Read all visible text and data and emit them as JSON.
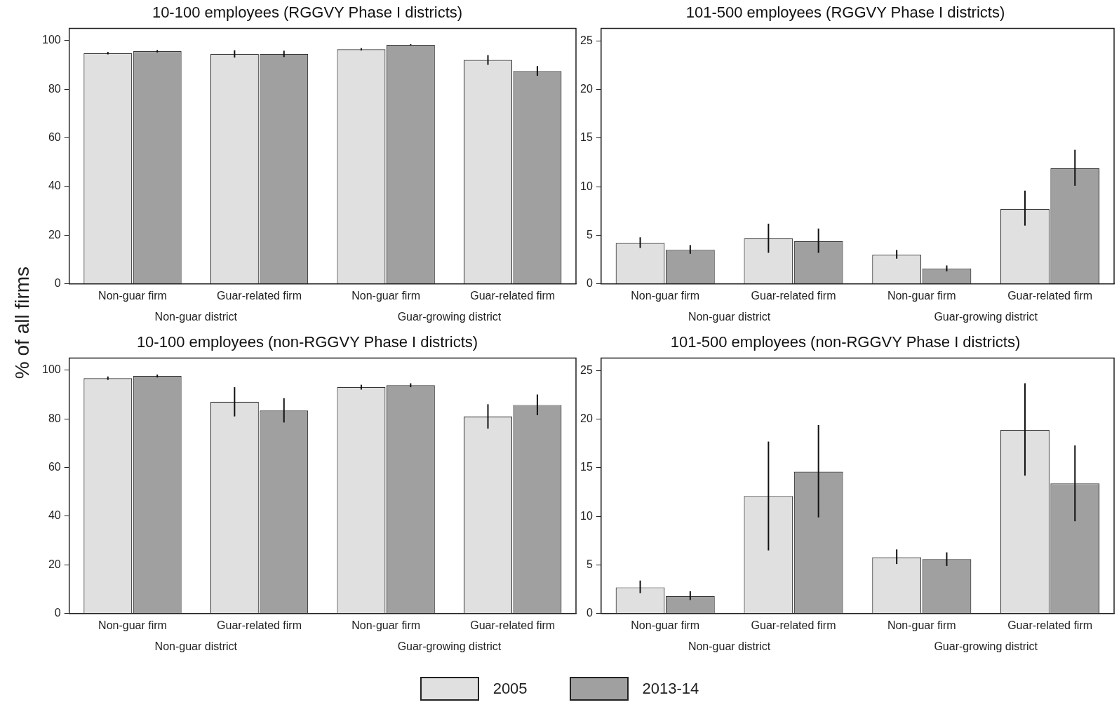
{
  "chart_data": [
    {
      "type": "bar",
      "title": "10-100 employees (RGGVY Phase I districts)",
      "ylabel": "% of all firms",
      "categories": [
        "Non-guar firm",
        "Guar-related firm",
        "Non-guar firm",
        "Guar-related firm"
      ],
      "annotations": [
        "Non-guar district",
        "Guar-growing district"
      ],
      "ylim": [
        0,
        105
      ],
      "yticks": [
        0,
        20,
        40,
        60,
        80,
        100
      ],
      "grid": false,
      "legend": "bottom",
      "series": [
        {
          "name": "2005",
          "color": "#e0e0e0",
          "values": [
            94.8,
            94.5,
            96.4,
            92
          ],
          "errors": [
            [
              94.3,
              95.3
            ],
            [
              93,
              96
            ],
            [
              95.9,
              96.9
            ],
            [
              90,
              94
            ]
          ]
        },
        {
          "name": "2013-14",
          "color": "#a0a0a0",
          "values": [
            95.6,
            94.5,
            98.2,
            87.5
          ],
          "errors": [
            [
              95.1,
              96.1
            ],
            [
              93.2,
              95.8
            ],
            [
              97.9,
              98.5
            ],
            [
              85.5,
              89.5
            ]
          ]
        }
      ]
    },
    {
      "type": "bar",
      "title": "101-500 employees (RGGVY Phase I districts)",
      "categories": [
        "Non-guar firm",
        "Guar-related firm",
        "Non-guar firm",
        "Guar-related firm"
      ],
      "annotations": [
        "Non-guar district",
        "Guar-growing district"
      ],
      "ylim": [
        0,
        26.3
      ],
      "yticks": [
        0,
        5,
        10,
        15,
        20,
        25
      ],
      "grid": false,
      "series": [
        {
          "color": "#e0e0e0",
          "values": [
            4.2,
            4.7,
            3.0,
            7.7
          ],
          "errors": [
            [
              3.7,
              4.8
            ],
            [
              3.2,
              6.2
            ],
            [
              2.6,
              3.5
            ],
            [
              6.0,
              9.6
            ]
          ]
        },
        {
          "color": "#a0a0a0",
          "values": [
            3.5,
            4.4,
            1.6,
            11.9
          ],
          "errors": [
            [
              3.1,
              4.0
            ],
            [
              3.2,
              5.7
            ],
            [
              1.3,
              1.9
            ],
            [
              10.1,
              13.8
            ]
          ]
        }
      ]
    },
    {
      "type": "bar",
      "title": "10-100 employees (non-RGGVY Phase I districts)",
      "categories": [
        "Non-guar firm",
        "Guar-related firm",
        "Non-guar firm",
        "Guar-related firm"
      ],
      "annotations": [
        "Non-guar district",
        "Guar-growing district"
      ],
      "ylim": [
        0,
        105
      ],
      "yticks": [
        0,
        20,
        40,
        60,
        80,
        100
      ],
      "grid": false,
      "series": [
        {
          "color": "#e0e0e0",
          "values": [
            96.7,
            87,
            93,
            81
          ],
          "errors": [
            [
              96,
              97.4
            ],
            [
              81,
              93
            ],
            [
              92,
              94
            ],
            [
              76,
              86
            ]
          ]
        },
        {
          "color": "#a0a0a0",
          "values": [
            97.6,
            83.4,
            93.8,
            85.7
          ],
          "errors": [
            [
              97,
              98.2
            ],
            [
              78.5,
              88.5
            ],
            [
              93,
              94.6
            ],
            [
              81.5,
              90
            ]
          ]
        }
      ]
    },
    {
      "type": "bar",
      "title": "101-500 employees (non-RGGVY Phase I districts)",
      "categories": [
        "Non-guar firm",
        "Guar-related firm",
        "Non-guar firm",
        "Guar-related firm"
      ],
      "annotations": [
        "Non-guar district",
        "Guar-growing district"
      ],
      "ylim": [
        0,
        26.3
      ],
      "yticks": [
        0,
        5,
        10,
        15,
        20,
        25
      ],
      "grid": false,
      "series": [
        {
          "color": "#e0e0e0",
          "values": [
            2.7,
            12.1,
            5.8,
            18.9
          ],
          "errors": [
            [
              2.1,
              3.4
            ],
            [
              6.5,
              17.7
            ],
            [
              5.1,
              6.6
            ],
            [
              14.2,
              23.7
            ]
          ]
        },
        {
          "color": "#a0a0a0",
          "values": [
            1.8,
            14.6,
            5.6,
            13.4
          ],
          "errors": [
            [
              1.4,
              2.3
            ],
            [
              9.9,
              19.4
            ],
            [
              4.9,
              6.3
            ],
            [
              9.5,
              17.3
            ]
          ]
        }
      ]
    }
  ]
}
